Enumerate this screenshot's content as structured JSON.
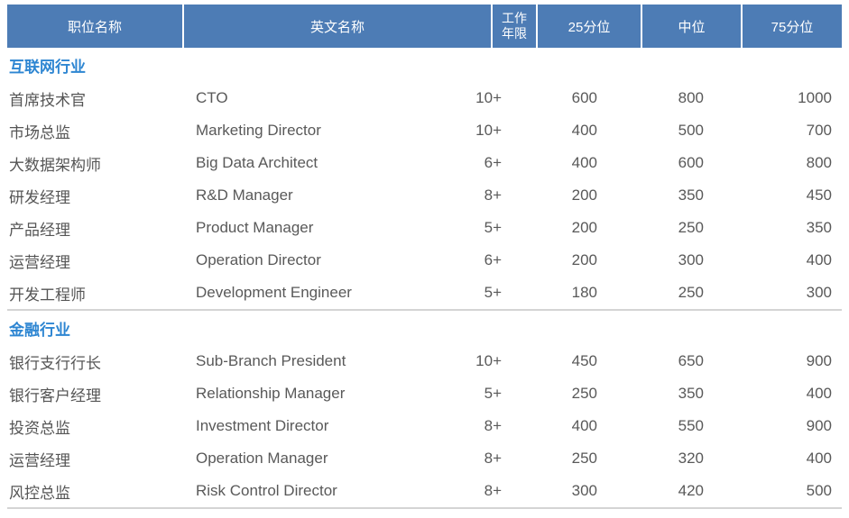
{
  "colors": {
    "header_bg": "#4d7cb5",
    "header_text": "#ffffff",
    "section_title_text": "#2e86d2",
    "body_text": "#595959",
    "divider_line": "#d4d4d4"
  },
  "table": {
    "columns": [
      {
        "key": "position",
        "label": "职位名称"
      },
      {
        "key": "english",
        "label": "英文名称"
      },
      {
        "key": "years",
        "label": "工作\n年限"
      },
      {
        "key": "p25",
        "label": "25分位"
      },
      {
        "key": "median",
        "label": "中位"
      },
      {
        "key": "p75",
        "label": "75分位"
      }
    ],
    "sections": [
      {
        "title": "互联网行业",
        "rows": [
          [
            "首席技术官",
            "CTO",
            "10+",
            600,
            800,
            1000
          ],
          [
            "市场总监",
            "Marketing Director",
            "10+",
            400,
            500,
            700
          ],
          [
            "大数据架构师",
            "Big Data Architect",
            "6+",
            400,
            600,
            800
          ],
          [
            "研发经理",
            "R&D Manager",
            "8+",
            200,
            350,
            450
          ],
          [
            "产品经理",
            "Product Manager",
            "5+",
            200,
            250,
            350
          ],
          [
            "运营经理",
            "Operation Director",
            "6+",
            200,
            300,
            400
          ],
          [
            "开发工程师",
            "Development Engineer",
            "5+",
            180,
            250,
            300
          ]
        ]
      },
      {
        "title": "金融行业",
        "rows": [
          [
            "银行支行行长",
            "Sub-Branch President",
            "10+",
            450,
            650,
            900
          ],
          [
            "银行客户经理",
            "Relationship Manager",
            "5+",
            250,
            350,
            400
          ],
          [
            "投资总监",
            "Investment Director",
            "8+",
            400,
            550,
            900
          ],
          [
            "运营经理",
            "Operation Manager",
            "8+",
            250,
            320,
            400
          ],
          [
            "风控总监",
            "Risk Control Director",
            "8+",
            300,
            420,
            500
          ]
        ]
      }
    ]
  }
}
